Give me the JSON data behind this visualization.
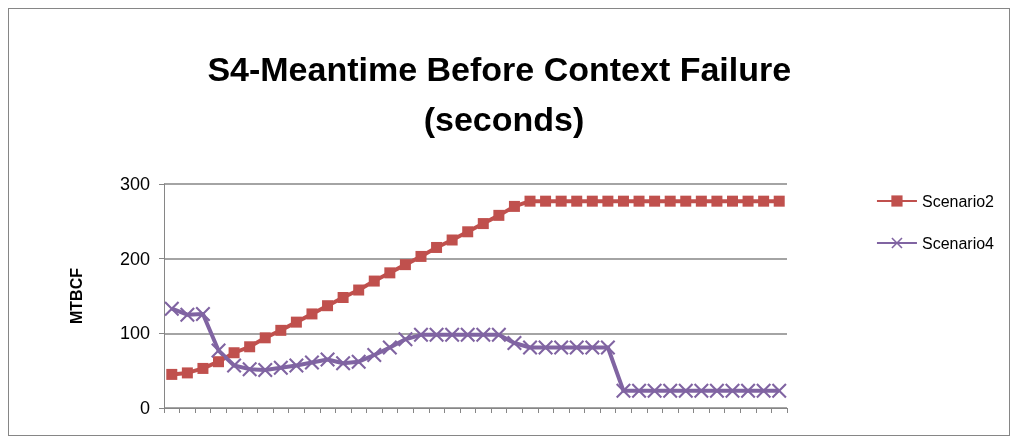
{
  "chart_data": {
    "type": "line",
    "title": "S4-Meantime Before Context Failure (seconds)",
    "ylabel": "MTBCF",
    "categories": [
      null,
      null,
      null,
      null,
      null,
      null,
      null,
      null,
      null,
      null,
      null,
      null,
      null,
      null,
      null,
      null,
      null,
      null,
      null,
      null,
      null,
      null,
      null,
      null,
      null,
      null,
      null,
      null,
      null,
      null,
      null,
      null,
      null,
      null,
      null,
      null,
      null,
      null,
      null,
      null
    ],
    "series": [
      {
        "name": "Scenario2",
        "color": "#c0504d",
        "marker": "square",
        "values": [
          45,
          47,
          53,
          62,
          74,
          82,
          94,
          104,
          115,
          126,
          137,
          148,
          158,
          170,
          181,
          192,
          203,
          215,
          225,
          236,
          247,
          258,
          270,
          277,
          277,
          277,
          277,
          277,
          277,
          277,
          277,
          277,
          277,
          277,
          277,
          277,
          277,
          277,
          277,
          277
        ]
      },
      {
        "name": "Scenario4",
        "color": "#8064a2",
        "marker": "cross",
        "values": [
          133,
          125,
          126,
          77,
          57,
          52,
          51,
          54,
          57,
          61,
          65,
          60,
          62,
          71,
          81,
          92,
          98,
          98,
          98,
          98,
          98,
          98,
          87,
          81,
          81,
          81,
          81,
          81,
          81,
          23,
          23,
          23,
          23,
          23,
          23,
          23,
          23,
          23,
          23,
          23
        ]
      }
    ],
    "ylim": [
      0,
      300
    ],
    "yticks": [
      0,
      100,
      200,
      300
    ],
    "grid": "y",
    "legend": "right",
    "tick_labels": "y"
  }
}
